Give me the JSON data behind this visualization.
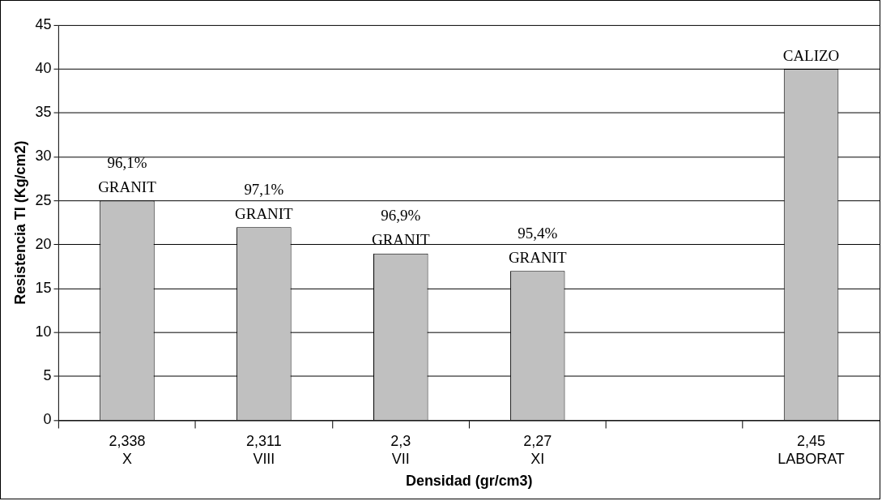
{
  "chart_data": {
    "type": "bar",
    "xlabel": "Densidad (gr/cm3)",
    "ylabel": "Resistencia TI (Kg/cm2)",
    "categories": [
      "2,338\nX",
      "2,311\nVIII",
      "2,3\nVII",
      "2,27\nXI",
      null,
      "2,45\nLABORAT"
    ],
    "values": [
      25,
      22,
      19,
      17,
      null,
      40
    ],
    "color": "#c0c0c0",
    "ylim": [
      0,
      45
    ],
    "yticks": [
      0,
      5,
      10,
      15,
      20,
      25,
      30,
      35,
      40,
      45
    ],
    "grid": "y",
    "legend": false,
    "annotations": [
      {
        "text": "96,1%\nGRANIT",
        "x": "2,338\nX",
        "y": 25
      },
      {
        "text": "97,1%\nGRANIT",
        "x": "2,311\nVIII",
        "y": 22
      },
      {
        "text": "96,9%\nGRANIT",
        "x": "2,3\nVII",
        "y": 19
      },
      {
        "text": "95,4%\nGRANIT",
        "x": "2,27\nXI",
        "y": 17
      },
      {
        "text": "CALIZO",
        "x": "2,45\nLABORAT",
        "y": 40
      }
    ]
  }
}
